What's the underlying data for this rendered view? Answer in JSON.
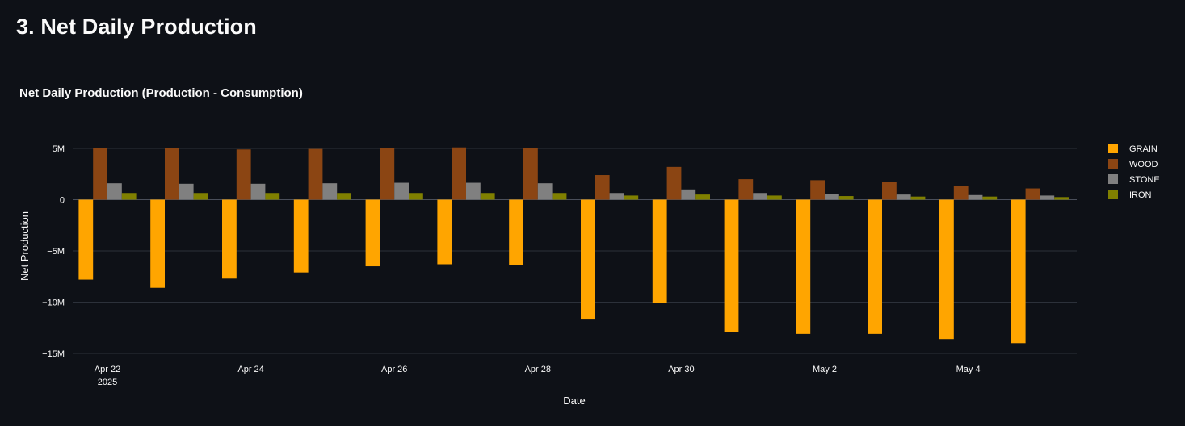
{
  "page": {
    "heading": "3. Net Daily Production"
  },
  "chart_data": {
    "type": "bar",
    "title": "Net Daily Production (Production - Consumption)",
    "xlabel": "Date",
    "ylabel": "Net Production",
    "ylim": [
      -15000000,
      5000000
    ],
    "yticks": [
      {
        "value": 5000000,
        "label": "5M"
      },
      {
        "value": 0,
        "label": "0"
      },
      {
        "value": -5000000,
        "label": "−5M"
      },
      {
        "value": -10000000,
        "label": "−10M"
      },
      {
        "value": -15000000,
        "label": "−15M"
      }
    ],
    "categories": [
      "2025-04-22",
      "2025-04-23",
      "2025-04-24",
      "2025-04-25",
      "2025-04-26",
      "2025-04-27",
      "2025-04-28",
      "2025-04-29",
      "2025-04-30",
      "2025-05-01",
      "2025-05-02",
      "2025-05-03",
      "2025-05-04",
      "2025-05-05"
    ],
    "xticks": [
      {
        "date": "2025-04-22",
        "label": "Apr 22",
        "sublabel": "2025"
      },
      {
        "date": "2025-04-24",
        "label": "Apr 24"
      },
      {
        "date": "2025-04-26",
        "label": "Apr 26"
      },
      {
        "date": "2025-04-28",
        "label": "Apr 28"
      },
      {
        "date": "2025-04-30",
        "label": "Apr 30"
      },
      {
        "date": "2025-05-02",
        "label": "May 2"
      },
      {
        "date": "2025-05-04",
        "label": "May 4"
      }
    ],
    "series": [
      {
        "name": "GRAIN",
        "color": "#ffa500",
        "values": [
          -7800000,
          -8600000,
          -7700000,
          -7100000,
          -6500000,
          -6300000,
          -6400000,
          -11700000,
          -10100000,
          -12900000,
          -13100000,
          -13100000,
          -13600000,
          -14000000
        ]
      },
      {
        "name": "WOOD",
        "color": "#8b4513",
        "values": [
          5000000,
          5000000,
          4900000,
          4950000,
          5000000,
          5100000,
          5000000,
          2400000,
          3200000,
          2000000,
          1900000,
          1700000,
          1300000,
          1100000
        ]
      },
      {
        "name": "STONE",
        "color": "#808080",
        "values": [
          1600000,
          1550000,
          1550000,
          1600000,
          1650000,
          1650000,
          1600000,
          650000,
          1000000,
          650000,
          550000,
          500000,
          450000,
          400000
        ]
      },
      {
        "name": "IRON",
        "color": "#808000",
        "values": [
          650000,
          650000,
          650000,
          650000,
          650000,
          650000,
          650000,
          400000,
          500000,
          400000,
          350000,
          300000,
          300000,
          250000
        ]
      }
    ],
    "legend_position": "top-right",
    "grid": true
  }
}
